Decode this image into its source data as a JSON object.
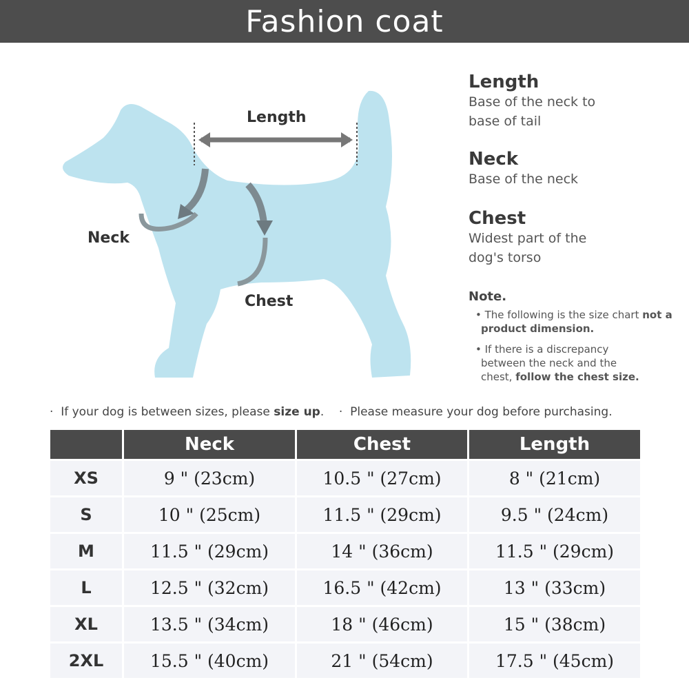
{
  "title": "Fashion coat",
  "diagram": {
    "length": "Length",
    "neck": "Neck",
    "chest": "Chest",
    "dog_color": "#bde3ef"
  },
  "definitions": [
    {
      "name": "Length",
      "desc": "Base of the neck to base of tail"
    },
    {
      "name": "Neck",
      "desc": "Base of the neck"
    },
    {
      "name": "Chest",
      "desc": "Widest part of the dog's torso"
    }
  ],
  "note": {
    "title": "Note.",
    "item1_a": "The following is the size chart ",
    "item1_b": "not a product dimension.",
    "item2_a": "If there is a discrepancy between the neck and the chest, ",
    "item2_b": "follow the chest size."
  },
  "tips": {
    "t1_a": "If your dog is between sizes, please ",
    "t1_b": "size up",
    "t1_c": ".",
    "t2": "Please measure your dog before purchasing."
  },
  "table": {
    "headers": [
      "",
      "Neck",
      "Chest",
      "Length"
    ],
    "rows": [
      [
        "XS",
        "9 \" (23cm)",
        "10.5 \" (27cm)",
        "8 \" (21cm)"
      ],
      [
        "S",
        "10 \" (25cm)",
        "11.5 \" (29cm)",
        "9.5 \" (24cm)"
      ],
      [
        "M",
        "11.5 \" (29cm)",
        "14 \" (36cm)",
        "11.5 \" (29cm)"
      ],
      [
        "L",
        "12.5 \" (32cm)",
        "16.5 \" (42cm)",
        "13 \" (33cm)"
      ],
      [
        "XL",
        "13.5 \" (34cm)",
        "18 \" (46cm)",
        "15 \" (38cm)"
      ],
      [
        "2XL",
        "15.5 \" (40cm)",
        "21 \" (54cm)",
        "17.5 \" (45cm)"
      ]
    ]
  }
}
